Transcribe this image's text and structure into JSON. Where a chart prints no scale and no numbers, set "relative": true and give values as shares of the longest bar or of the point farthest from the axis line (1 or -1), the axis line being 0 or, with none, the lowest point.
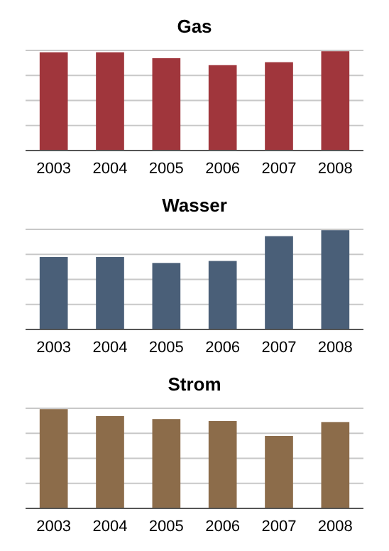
{
  "chart_data": [
    {
      "type": "bar",
      "title": "Gas",
      "categories": [
        "2003",
        "2004",
        "2005",
        "2006",
        "2007",
        "2008"
      ],
      "values": [
        0.99,
        0.99,
        0.93,
        0.86,
        0.89,
        1
      ],
      "color": "#a0363c",
      "relative": true,
      "grid": "y"
    },
    {
      "type": "bar",
      "title": "Wasser",
      "categories": [
        "2003",
        "2004",
        "2005",
        "2006",
        "2007",
        "2008"
      ],
      "values": [
        0.73,
        0.73,
        0.67,
        0.69,
        0.94,
        1
      ],
      "color": "#4a5f78",
      "relative": true,
      "grid": "y"
    },
    {
      "type": "bar",
      "title": "Strom",
      "categories": [
        "2003",
        "2004",
        "2005",
        "2006",
        "2007",
        "2008"
      ],
      "values": [
        1,
        0.93,
        0.9,
        0.88,
        0.73,
        0.87
      ],
      "color": "#8c6c4a",
      "relative": true,
      "grid": "y"
    }
  ]
}
